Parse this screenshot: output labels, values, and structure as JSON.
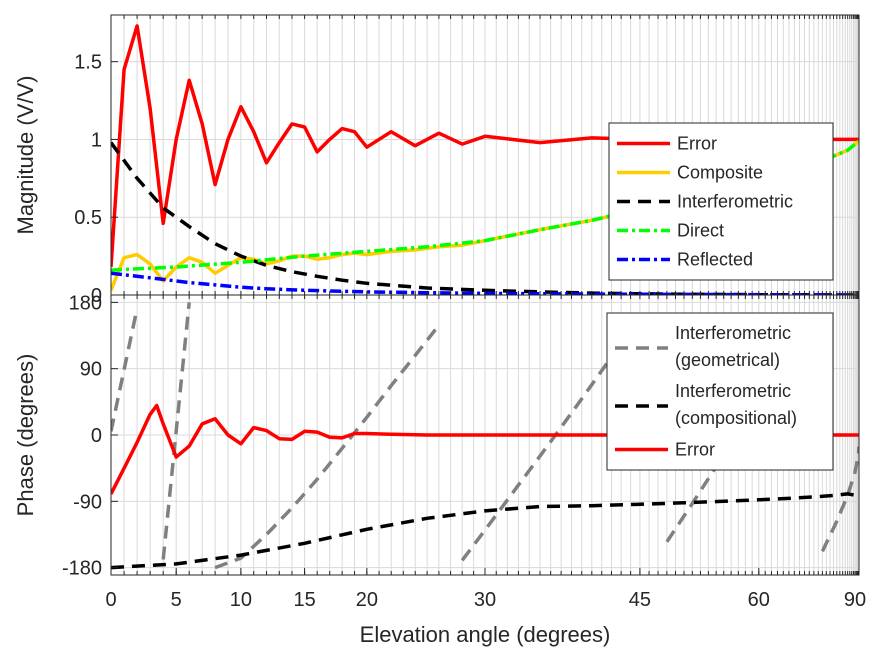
{
  "chart_data": [
    {
      "type": "line",
      "ylabel": "Magnitude (V/V)",
      "xlim": [
        0,
        90
      ],
      "ylim": [
        0,
        1.8
      ],
      "x_scale": "sine",
      "yticks": [
        0,
        0.5,
        1,
        1.5
      ],
      "ytick_labels": [
        "0",
        "0.5",
        "1",
        "1.5"
      ],
      "grid": true,
      "legend_position": "right",
      "series": [
        {
          "name": "Error",
          "color": "#ff0000",
          "style": "solid",
          "x": [
            0,
            1,
            2,
            3,
            4,
            5,
            6,
            7,
            8,
            9,
            10,
            11,
            12,
            13,
            14,
            15,
            16,
            17,
            18,
            19,
            20,
            22,
            24,
            26,
            28,
            30,
            35,
            40,
            45,
            50,
            60,
            70,
            80,
            90
          ],
          "y": [
            0.18,
            1.45,
            1.73,
            1.2,
            0.46,
            1.0,
            1.38,
            1.1,
            0.71,
            1.0,
            1.21,
            1.05,
            0.85,
            0.98,
            1.1,
            1.08,
            0.92,
            1.0,
            1.07,
            1.05,
            0.95,
            1.05,
            0.96,
            1.04,
            0.97,
            1.02,
            0.98,
            1.01,
            1.0,
            1.0,
            1.0,
            1.0,
            1.0,
            1.0
          ]
        },
        {
          "name": "Composite",
          "color": "#ffcc00",
          "style": "solid",
          "x": [
            0,
            1,
            2,
            3,
            4,
            5,
            6,
            7,
            8,
            9,
            10,
            11,
            12,
            13,
            14,
            15,
            16,
            17,
            18,
            19,
            20,
            22,
            24,
            26,
            28,
            30,
            35,
            40,
            45,
            50,
            60,
            70,
            80,
            90
          ],
          "y": [
            0.03,
            0.24,
            0.26,
            0.2,
            0.09,
            0.18,
            0.24,
            0.21,
            0.14,
            0.19,
            0.24,
            0.23,
            0.2,
            0.22,
            0.25,
            0.25,
            0.23,
            0.24,
            0.26,
            0.27,
            0.26,
            0.28,
            0.29,
            0.31,
            0.32,
            0.35,
            0.42,
            0.48,
            0.55,
            0.62,
            0.73,
            0.84,
            0.93,
            0.99
          ]
        },
        {
          "name": "Interferometric",
          "color": "#000000",
          "style": "dashed",
          "x": [
            0,
            2,
            4,
            6,
            8,
            10,
            12,
            14,
            16,
            18,
            20,
            25,
            30,
            35,
            40,
            45,
            50,
            60,
            70,
            80,
            90
          ],
          "y": [
            0.98,
            0.75,
            0.56,
            0.44,
            0.33,
            0.25,
            0.19,
            0.15,
            0.12,
            0.095,
            0.075,
            0.045,
            0.03,
            0.02,
            0.012,
            0.008,
            0.005,
            0.002,
            0.001,
            0.0,
            0.0
          ]
        },
        {
          "name": "Direct",
          "color": "#00ff00",
          "style": "dashdot",
          "x": [
            0,
            5,
            10,
            15,
            20,
            25,
            30,
            35,
            40,
            45,
            50,
            60,
            70,
            80,
            90
          ],
          "y": [
            0.16,
            0.18,
            0.21,
            0.25,
            0.28,
            0.31,
            0.35,
            0.42,
            0.48,
            0.55,
            0.62,
            0.73,
            0.84,
            0.93,
            0.99
          ]
        },
        {
          "name": "Reflected",
          "color": "#0000ff",
          "style": "dashdot",
          "x": [
            0,
            2,
            4,
            6,
            8,
            10,
            12,
            15,
            20,
            25,
            30,
            40,
            50,
            60,
            70,
            80,
            90
          ],
          "y": [
            0.14,
            0.12,
            0.1,
            0.08,
            0.065,
            0.05,
            0.04,
            0.03,
            0.02,
            0.015,
            0.01,
            0.006,
            0.004,
            0.002,
            0.001,
            0.0,
            0.0
          ]
        }
      ]
    },
    {
      "type": "line",
      "xlabel": "Elevation angle (degrees)",
      "ylabel": "Phase (degrees)",
      "xlim": [
        0,
        90
      ],
      "ylim": [
        -190,
        190
      ],
      "x_scale": "sine",
      "xticks": [
        0,
        5,
        10,
        15,
        20,
        30,
        45,
        60,
        90
      ],
      "xtick_labels": [
        "0",
        "5",
        "10",
        "15",
        "20",
        "30",
        "45",
        "60",
        "90"
      ],
      "yticks": [
        -180,
        -90,
        0,
        90,
        180
      ],
      "ytick_labels": [
        "-180",
        "-90",
        "0",
        "90",
        "180"
      ],
      "grid": true,
      "legend_position": "right",
      "series": [
        {
          "name": "Interferometric (geometrical)",
          "color": "#808080",
          "style": "dashed",
          "wrap": [
            -180,
            180
          ],
          "x": [
            0,
            2,
            4,
            6,
            8,
            10,
            12,
            14,
            16,
            18,
            20,
            22,
            24,
            26,
            28,
            30,
            33,
            36,
            39,
            42,
            45,
            48,
            51,
            54,
            57,
            60,
            64,
            68,
            72,
            76,
            80,
            84,
            88,
            90
          ],
          "y": [
            5,
            172,
            -169,
            180,
            -180,
            -167,
            -135,
            -99,
            -60,
            -18,
            24,
            67,
            108,
            149,
            -170,
            -129,
            -68,
            -9,
            49,
            106,
            162,
            -145,
            -93,
            -43,
            4,
            49,
            105,
            156,
            -158,
            -117,
            -82,
            -51,
            -26,
            -16
          ]
        },
        {
          "name": "Interferometric (compositional)",
          "color": "#000000",
          "style": "dashed",
          "x": [
            0,
            5,
            10,
            15,
            20,
            25,
            30,
            35,
            40,
            45,
            50,
            55,
            60,
            65,
            70,
            75,
            80,
            85,
            90
          ],
          "y": [
            -180,
            -175,
            -163,
            -147,
            -128,
            -113,
            -103,
            -97,
            -96,
            -94,
            -92,
            -90,
            -88,
            -86,
            -84,
            -82,
            -80,
            -82,
            -88
          ]
        },
        {
          "name": "Error",
          "color": "#ff0000",
          "style": "solid",
          "x": [
            0,
            1,
            2,
            3,
            3.5,
            4,
            5,
            6,
            7,
            8,
            9,
            10,
            11,
            12,
            13,
            14,
            15,
            16,
            17,
            18,
            19,
            20,
            22,
            25,
            30,
            35,
            40,
            45,
            60,
            90
          ],
          "y": [
            -80,
            -45,
            -10,
            28,
            40,
            15,
            -30,
            -15,
            15,
            22,
            0,
            -12,
            10,
            6,
            -5,
            -6,
            5,
            4,
            -3,
            -4,
            2,
            2,
            1,
            0,
            0,
            0,
            0,
            0,
            0,
            0
          ]
        }
      ]
    }
  ]
}
